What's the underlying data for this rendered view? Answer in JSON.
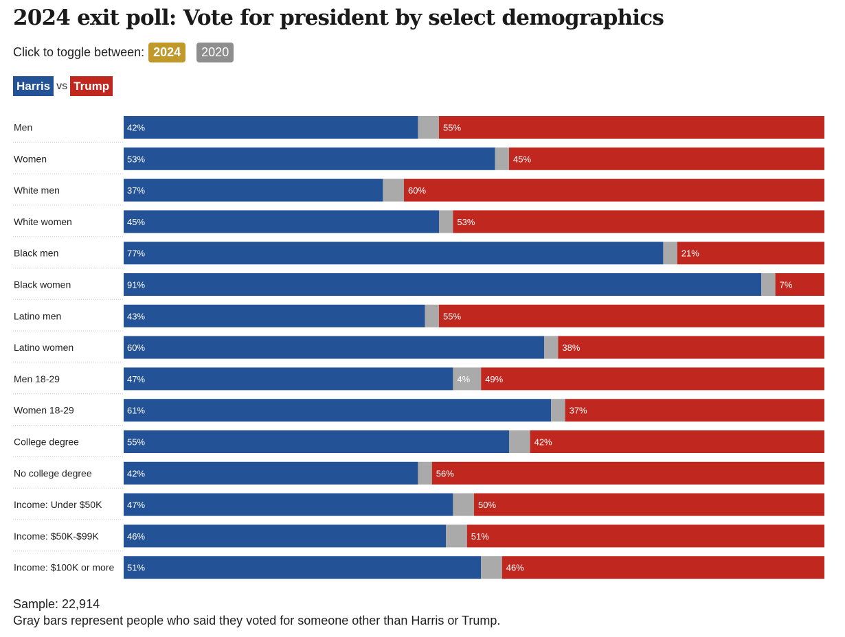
{
  "title": "2024 exit poll: Vote for president by select demographics",
  "toggle": {
    "label": "Click to toggle between:",
    "options": [
      {
        "label": "2024",
        "active": true,
        "color": "#c0992a"
      },
      {
        "label": "2020",
        "active": false,
        "color": "#8e8e8e"
      }
    ]
  },
  "legend": {
    "harris": "Harris",
    "vs": "vs",
    "trump": "Trump"
  },
  "colors": {
    "harris": "#235396",
    "trump": "#c0271f",
    "other": "#aaaaaa"
  },
  "chart_data": {
    "type": "bar",
    "stacked": true,
    "orientation": "horizontal",
    "xlim": [
      0,
      100
    ],
    "categories": [
      "Men",
      "Women",
      "White men",
      "White women",
      "Black men",
      "Black women",
      "Latino men",
      "Latino women",
      "Men 18-29",
      "Women 18-29",
      "College degree",
      "No college degree",
      "Income: Under $50K",
      "Income: $50K-$99K",
      "Income: $100K or more"
    ],
    "series": [
      {
        "name": "Harris",
        "values": [
          42,
          53,
          37,
          45,
          77,
          91,
          43,
          60,
          47,
          61,
          55,
          42,
          47,
          46,
          51
        ]
      },
      {
        "name": "Other",
        "values": [
          3,
          2,
          3,
          2,
          2,
          2,
          2,
          2,
          4,
          2,
          3,
          2,
          3,
          3,
          3
        ]
      },
      {
        "name": "Trump",
        "values": [
          55,
          45,
          60,
          53,
          21,
          7,
          55,
          38,
          49,
          37,
          42,
          56,
          50,
          51,
          46
        ]
      }
    ],
    "labels": {
      "harris": [
        "42%",
        "53%",
        "37%",
        "45%",
        "77%",
        "91%",
        "43%",
        "60%",
        "47%",
        "61%",
        "55%",
        "42%",
        "47%",
        "46%",
        "51%"
      ],
      "other": [
        "",
        "",
        "",
        "",
        "",
        "",
        "",
        "",
        "4%",
        "",
        "",
        "",
        "",
        "",
        ""
      ],
      "trump": [
        "55%",
        "45%",
        "60%",
        "53%",
        "21%",
        "7%",
        "55%",
        "38%",
        "49%",
        "37%",
        "42%",
        "56%",
        "50%",
        "51%",
        "46%"
      ]
    },
    "grid": false,
    "legend_placement": "top-left"
  },
  "footer": {
    "sample": "Sample: 22,914",
    "note": "Gray bars represent people who said they voted for someone other than Harris or Trump."
  }
}
